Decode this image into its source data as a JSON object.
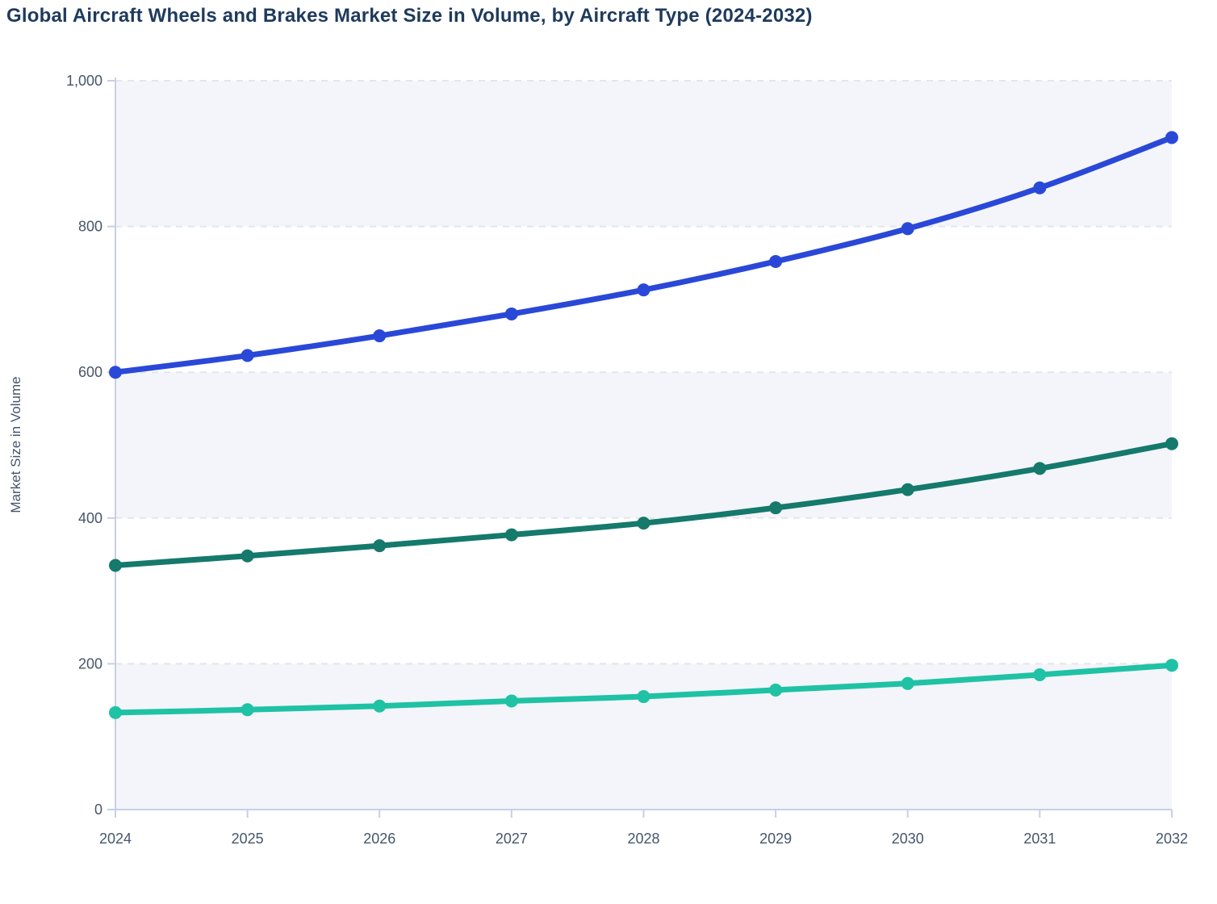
{
  "chart": {
    "title": "Global Aircraft Wheels and Brakes Market Size in Volume, by Aircraft Type (2024-2032)",
    "y_axis_label": "Market Size in Volume"
  },
  "chart_data": {
    "type": "line",
    "title": "Global Aircraft Wheels and Brakes Market Size in Volume, by Aircraft Type (2024-2032)",
    "xlabel": "",
    "ylabel": "Market Size in Volume",
    "categories": [
      "2024",
      "2025",
      "2026",
      "2027",
      "2028",
      "2029",
      "2030",
      "2031",
      "2032"
    ],
    "series": [
      {
        "name": "series-blue",
        "color": "#2a48d8",
        "values": [
          600,
          623,
          650,
          680,
          713,
          752,
          797,
          853,
          922
        ]
      },
      {
        "name": "series-dark-teal",
        "color": "#15796c",
        "values": [
          335,
          348,
          362,
          377,
          393,
          414,
          439,
          468,
          502
        ]
      },
      {
        "name": "series-light-teal",
        "color": "#1fc2a4",
        "values": [
          133,
          137,
          142,
          149,
          155,
          164,
          173,
          185,
          198
        ]
      }
    ],
    "ylim": [
      0,
      1000
    ],
    "y_tick_step": 200,
    "y_tick_labels": [
      "0",
      "200",
      "400",
      "600",
      "800",
      "1,000"
    ],
    "grid": "horizontal-dashed",
    "split_area": "alternating-bands",
    "legend_position": "none",
    "smooth": true,
    "marker": "dot",
    "colors": {
      "plot_band": "#f3f5fa",
      "grid_line": "#e2e5eb",
      "axis_line": "#c6cfe8",
      "tick_label": "#46566b",
      "title": "#1e3a5c",
      "background": "#ffffff"
    }
  }
}
